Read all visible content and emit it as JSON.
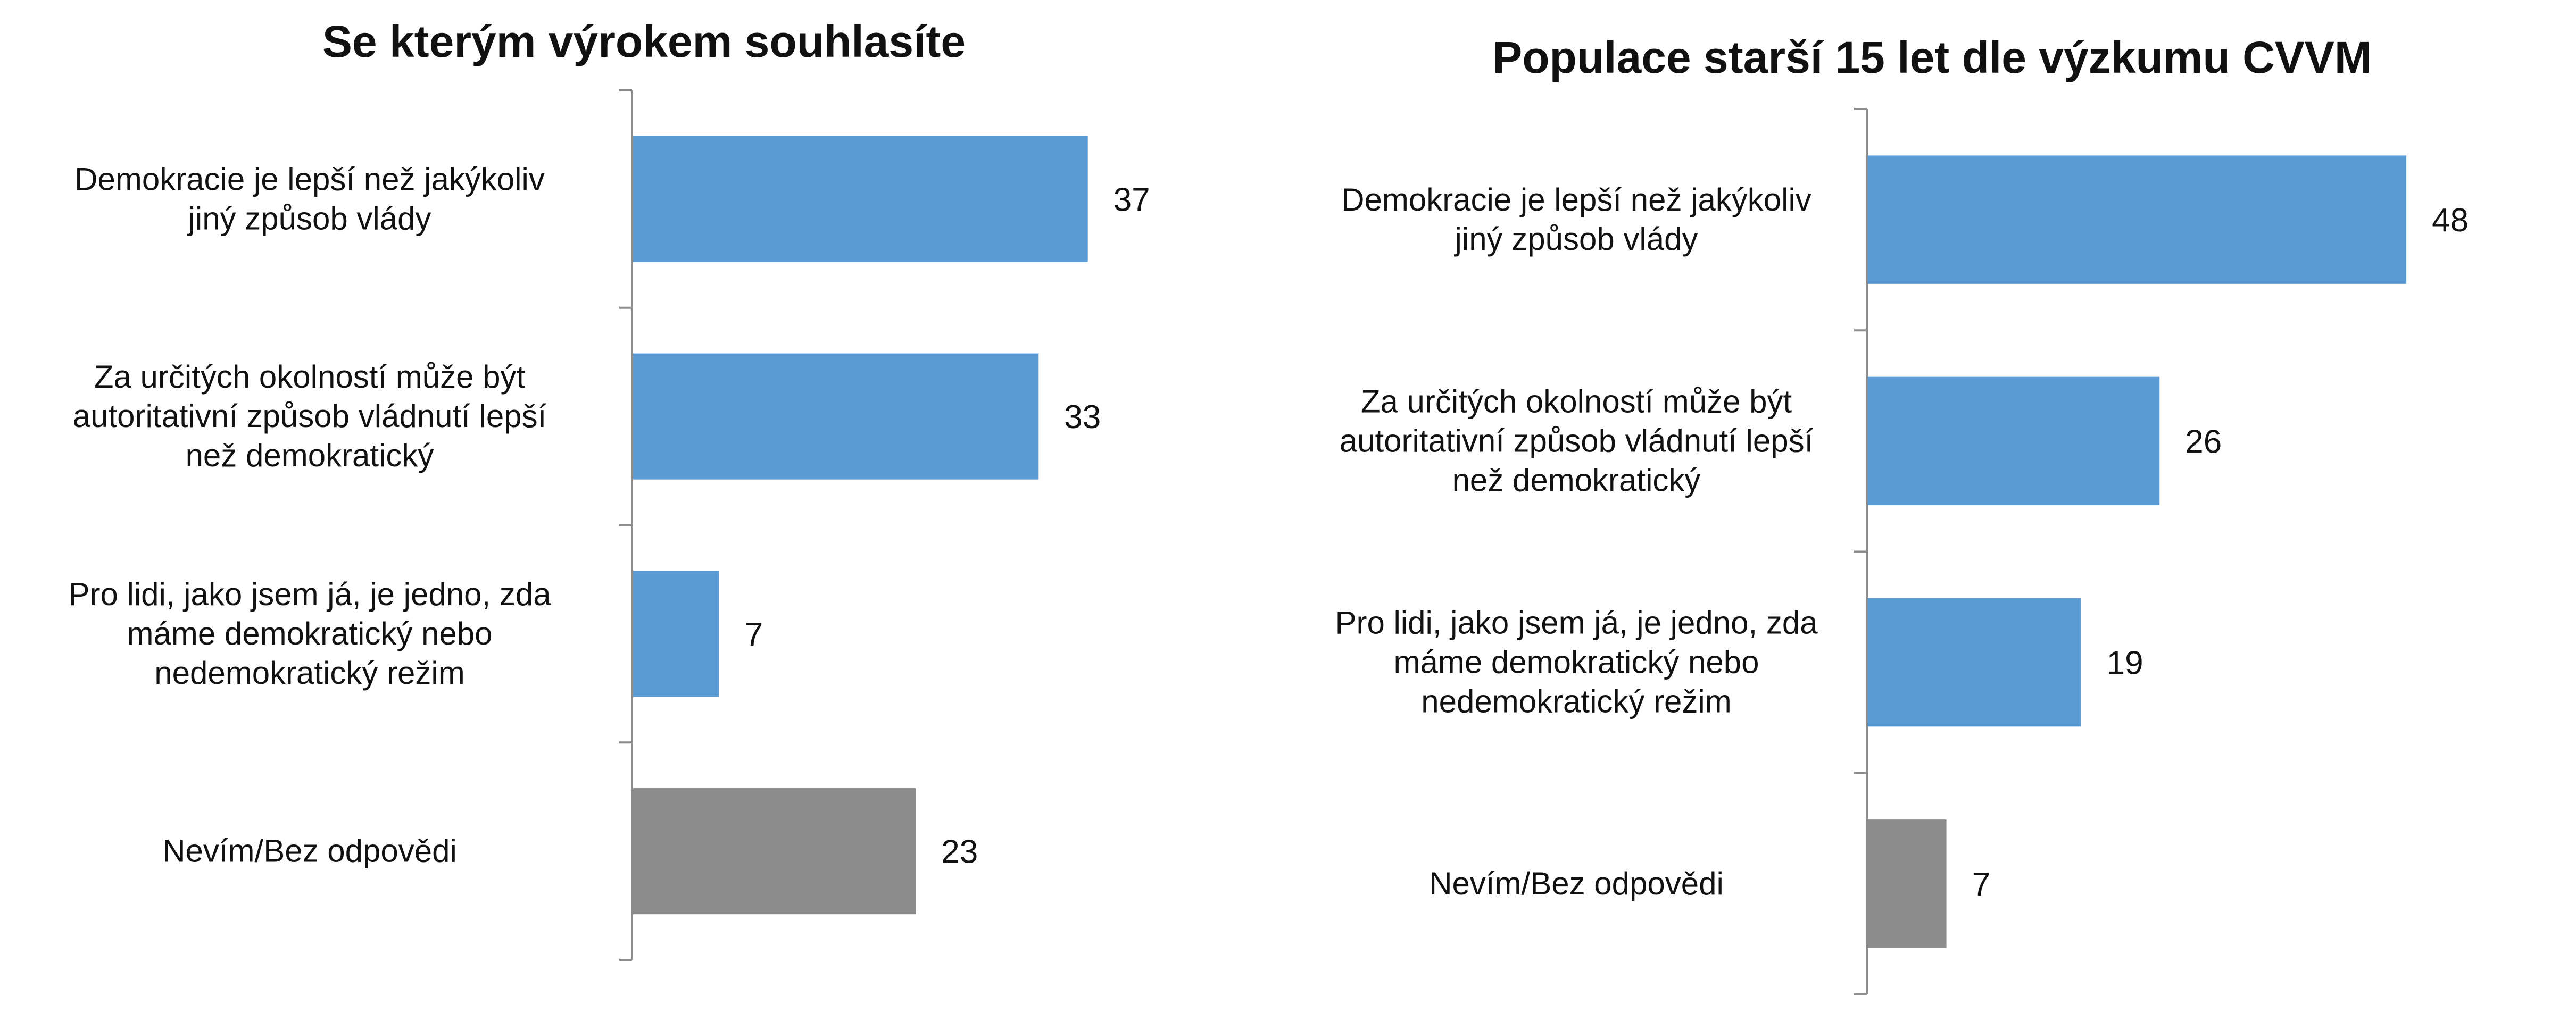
{
  "chart_data": [
    {
      "type": "bar",
      "orientation": "horizontal",
      "title": "Se kterým výrokem souhlasíte",
      "categories": [
        [
          "Demokracie je lepší než jakýkoliv",
          "jiný způsob vlády"
        ],
        [
          "Za určitých okolností může být",
          "autoritativní způsob vládnutí lepší",
          "než demokratický"
        ],
        [
          "Pro lidi, jako jsem já, je jedno, zda",
          "máme demokratický nebo",
          "nedemokratický režim"
        ],
        [
          "Nevím/Bez odpovědi"
        ]
      ],
      "values": [
        37,
        33,
        7,
        23
      ],
      "bar_colors": [
        "#5B9BD5",
        "#5B9BD5",
        "#5B9BD5",
        "#8C8C8C"
      ],
      "data_labels": [
        "37",
        "33",
        "7",
        "23"
      ],
      "xlim": [
        0,
        50
      ],
      "grid": false,
      "legend": "none"
    },
    {
      "type": "bar",
      "orientation": "horizontal",
      "title": "Populace starší 15 let dle výzkumu CVVM",
      "categories": [
        [
          "Demokracie je lepší než jakýkoliv",
          "jiný způsob vlády"
        ],
        [
          "Za určitých okolností může být",
          "autoritativní způsob vládnutí lepší",
          "než demokratický"
        ],
        [
          "Pro lidi, jako jsem já, je jedno, zda",
          "máme demokratický nebo",
          "nedemokratický režim"
        ],
        [
          "Nevím/Bez odpovědi"
        ]
      ],
      "values": [
        48,
        26,
        19,
        7
      ],
      "bar_colors": [
        "#5B9BD5",
        "#5B9BD5",
        "#5B9BD5",
        "#8C8C8C"
      ],
      "data_labels": [
        "48",
        "26",
        "19",
        "7"
      ],
      "xlim": [
        0,
        58
      ],
      "grid": false,
      "legend": "none"
    }
  ],
  "colors": {
    "bar_blue": "#5B9BD5",
    "bar_gray": "#8C8C8C",
    "axis": "#8C8C8C"
  }
}
